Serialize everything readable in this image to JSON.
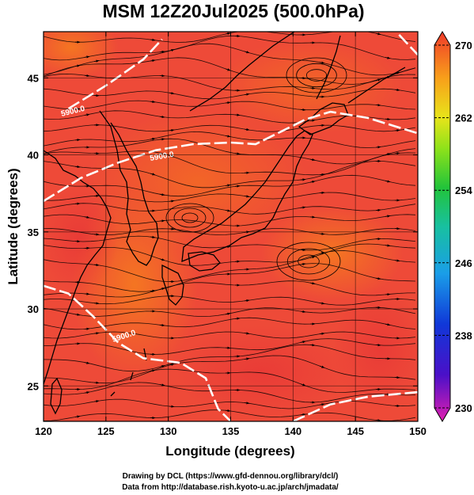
{
  "title": "MSM 12Z20Jul2025 (500.0hPa)",
  "x_axis": {
    "label": "Longitude (degrees)",
    "ticks": [
      "120",
      "125",
      "130",
      "135",
      "140",
      "145",
      "150"
    ]
  },
  "y_axis": {
    "label": "Latitude  (degrees)",
    "ticks": [
      "25",
      "30",
      "35",
      "40",
      "45"
    ]
  },
  "colorbar": {
    "ticks": [
      "270",
      "262",
      "254",
      "246",
      "238",
      "230"
    ],
    "min": 230,
    "max": 270
  },
  "contour_labels": [
    "5900.0",
    "5900.0",
    "5900.0"
  ],
  "credits": {
    "line1": "Drawing by DCL (https://www.gfd-dennou.org/library/dcl/)",
    "line2": "Data from http://database.rish.kyoto-u.ac.jp/arch/jmadata/"
  },
  "colors": {
    "field_base": "#ee4a38",
    "field_warm": "#f57a1f",
    "contour": "#ffffff",
    "streamline": "#000000"
  },
  "map_data": {
    "lon_range": [
      120,
      150
    ],
    "lat_range": [
      22.7,
      48
    ],
    "contour_5900": [
      [
        [
          120,
          37.0
        ],
        [
          123,
          38.5
        ],
        [
          126,
          39.5
        ],
        [
          129,
          40.3
        ],
        [
          132,
          40.7
        ],
        [
          135,
          40.8
        ],
        [
          137,
          40.7
        ],
        [
          139,
          41.5
        ],
        [
          141,
          42.3
        ],
        [
          143,
          42.8
        ],
        [
          146,
          42.4
        ],
        [
          148,
          41.9
        ],
        [
          150,
          41.4
        ]
      ],
      [
        [
          120,
          31.5
        ],
        [
          122,
          31.0
        ],
        [
          124,
          29.5
        ],
        [
          126,
          27.8
        ],
        [
          128,
          26.8
        ],
        [
          131,
          26.5
        ],
        [
          133,
          25.5
        ],
        [
          134,
          23.5
        ],
        [
          135,
          22.7
        ]
      ],
      [
        [
          140,
          22.7
        ],
        [
          143,
          23.8
        ],
        [
          146,
          24.3
        ],
        [
          150,
          24.6
        ]
      ],
      [
        [
          122,
          43.0
        ],
        [
          125,
          44.5
        ],
        [
          128,
          46.2
        ],
        [
          129.5,
          47.5
        ]
      ],
      [
        [
          148.5,
          47.8
        ],
        [
          150,
          46.5
        ]
      ]
    ]
  }
}
